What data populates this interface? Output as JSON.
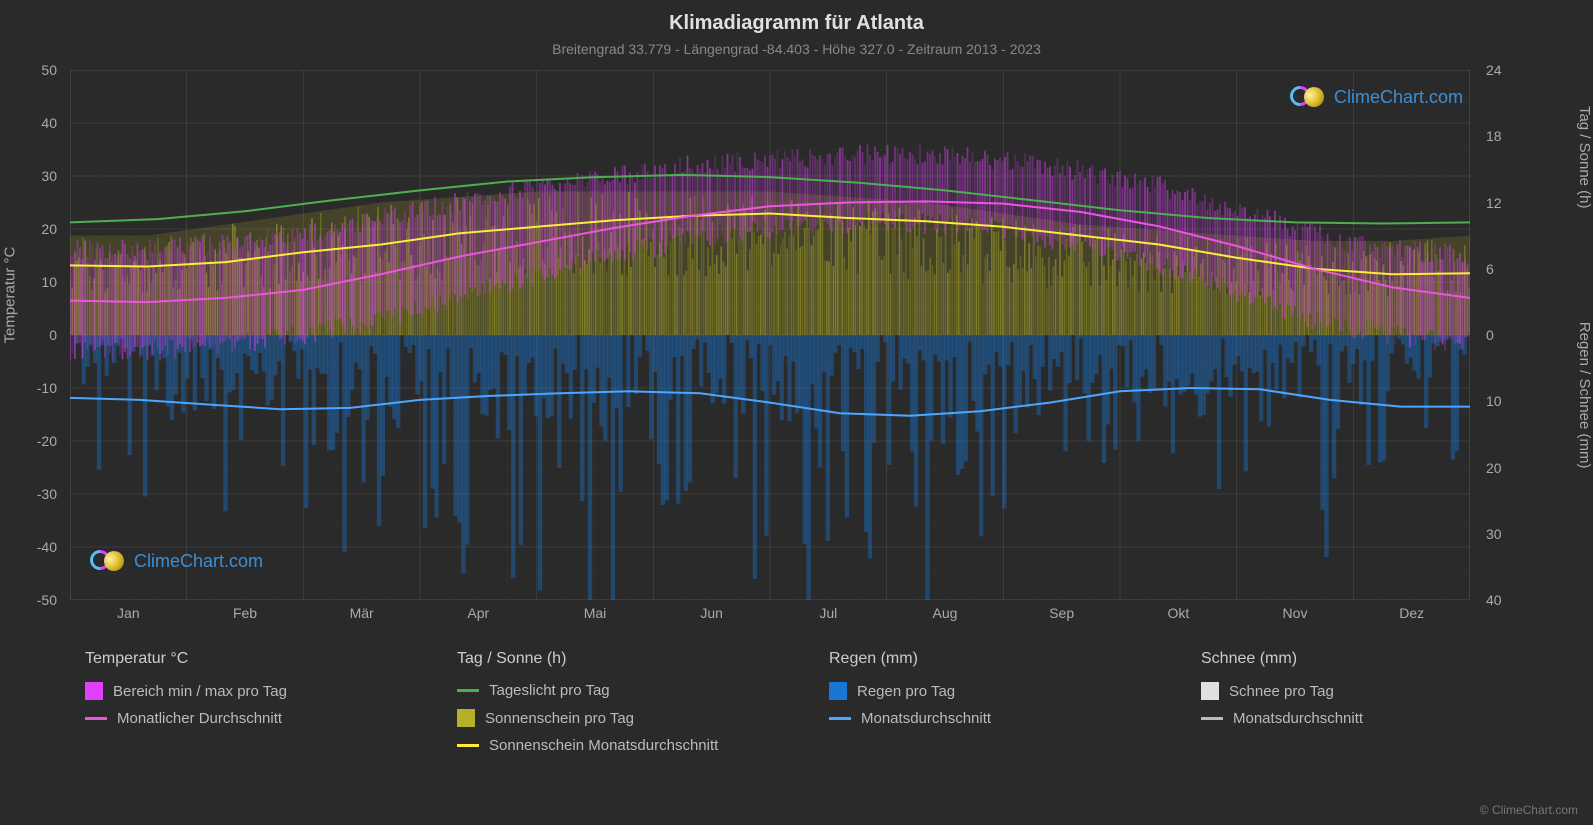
{
  "title": "Klimadiagramm für Atlanta",
  "subtitle": "Breitengrad 33.779 - Längengrad -84.403 - Höhe 327.0 - Zeitraum 2013 - 2023",
  "background_color": "#2a2a2a",
  "plot_background": "#2a2a2a",
  "grid_color": "#555555",
  "grid_minor_color": "#3a3a3a",
  "text_color": "#aaaaaa",
  "title_color": "#e0e0e0",
  "title_fontsize": 20,
  "subtitle_fontsize": 14,
  "axis_fontsize": 15,
  "tick_fontsize": 14,
  "months": [
    "Jan",
    "Feb",
    "Mär",
    "Apr",
    "Mai",
    "Jun",
    "Jul",
    "Aug",
    "Sep",
    "Okt",
    "Nov",
    "Dez"
  ],
  "temp_axis": {
    "label": "Temperatur °C",
    "min": -50,
    "max": 50,
    "ticks": [
      50,
      40,
      30,
      20,
      10,
      0,
      -10,
      -20,
      -30,
      -40,
      -50
    ],
    "tick_step": 10
  },
  "sun_axis": {
    "label": "Tag / Sonne (h)",
    "min": 0,
    "max": 24,
    "ticks": [
      24,
      18,
      12,
      6,
      0
    ],
    "tick_step": 6,
    "zero_at_temp": 0
  },
  "precip_axis": {
    "label": "Regen / Schnee (mm)",
    "min": 0,
    "max": 40,
    "ticks": [
      0,
      10,
      20,
      30,
      40
    ],
    "tick_step": 10,
    "zero_at_temp": 0
  },
  "series": {
    "daylight": {
      "color": "#4caf50",
      "width": 2,
      "data": [
        10.2,
        10.5,
        11.2,
        12.2,
        13.1,
        13.9,
        14.3,
        14.5,
        14.3,
        13.8,
        13.1,
        12.2,
        11.3,
        10.6,
        10.2,
        10.1,
        10.2
      ]
    },
    "sunshine": {
      "color": "#ffeb3b",
      "width": 2,
      "data": [
        6.3,
        6.2,
        6.6,
        7.5,
        8.2,
        9.2,
        9.8,
        10.4,
        10.8,
        11.0,
        10.6,
        10.3,
        9.8,
        9.0,
        8.2,
        7.0,
        6.0,
        5.5,
        5.6
      ]
    },
    "temp_avg": {
      "color": "#ee55dd",
      "width": 2,
      "data": [
        6.5,
        6.2,
        7.0,
        8.5,
        11.5,
        14.8,
        17.5,
        20.2,
        22.5,
        24.3,
        25.0,
        25.2,
        24.8,
        23.2,
        20.5,
        16.8,
        12.5,
        9.0,
        7.0
      ]
    },
    "rain_avg": {
      "color": "#4da6ff",
      "width": 2,
      "data": [
        9.5,
        9.8,
        10.5,
        11.2,
        11.0,
        9.8,
        9.2,
        8.8,
        8.5,
        8.8,
        10.2,
        11.8,
        12.2,
        11.5,
        10.2,
        8.5,
        8.0,
        8.2,
        9.8,
        10.8,
        10.8
      ]
    },
    "temp_range_band": {
      "color_fill": "#e040fb",
      "opacity": 0.55,
      "upper": [
        16,
        16,
        17,
        19,
        22,
        25,
        28,
        30,
        32,
        33,
        34,
        34,
        33,
        31,
        28,
        24,
        19,
        16,
        15
      ],
      "lower": [
        -3,
        -3,
        -2,
        0,
        3,
        7,
        11,
        15,
        18,
        20,
        21,
        21,
        20,
        17,
        13,
        8,
        3,
        0,
        -2
      ]
    },
    "sunshine_band": {
      "color_fill": "#b5b02a",
      "opacity": 0.55,
      "upper": [
        9,
        9,
        10,
        11,
        12,
        12.5,
        13,
        13,
        13,
        13,
        12.5,
        12,
        11,
        10,
        9.5,
        9,
        8.5,
        8.5,
        9
      ],
      "lower": [
        0,
        0,
        0,
        0,
        0,
        0,
        0,
        0,
        0,
        0,
        0,
        0,
        0,
        0,
        0,
        0,
        0,
        0,
        0
      ]
    },
    "rain_daily_bars": {
      "color_fill": "#1976d2",
      "opacity": 0.4,
      "max_depth": 38
    },
    "snow_daily_bars": {
      "color_fill": "#e0e0e0",
      "opacity": 0.3
    }
  },
  "legend": {
    "groups": [
      {
        "header": "Temperatur °C",
        "items": [
          {
            "type": "swatch",
            "color": "#e040fb",
            "label": "Bereich min / max pro Tag"
          },
          {
            "type": "line",
            "color": "#ee55dd",
            "label": "Monatlicher Durchschnitt"
          }
        ]
      },
      {
        "header": "Tag / Sonne (h)",
        "items": [
          {
            "type": "line",
            "color": "#4caf50",
            "label": "Tageslicht pro Tag"
          },
          {
            "type": "swatch",
            "color": "#b5b02a",
            "label": "Sonnenschein pro Tag"
          },
          {
            "type": "line",
            "color": "#ffeb3b",
            "label": "Sonnenschein Monatsdurchschnitt"
          }
        ]
      },
      {
        "header": "Regen (mm)",
        "items": [
          {
            "type": "swatch",
            "color": "#1976d2",
            "label": "Regen pro Tag"
          },
          {
            "type": "line",
            "color": "#4da6ff",
            "label": "Monatsdurchschnitt"
          }
        ]
      },
      {
        "header": "Schnee (mm)",
        "items": [
          {
            "type": "swatch",
            "color": "#e0e0e0",
            "label": "Schnee pro Tag"
          },
          {
            "type": "line",
            "color": "#bbbbbb",
            "label": "Monatsdurchschnitt"
          }
        ]
      }
    ]
  },
  "watermark_text": "ClimeChart.com",
  "watermark_color": "#3a8fd8",
  "copyright": "© ClimeChart.com"
}
